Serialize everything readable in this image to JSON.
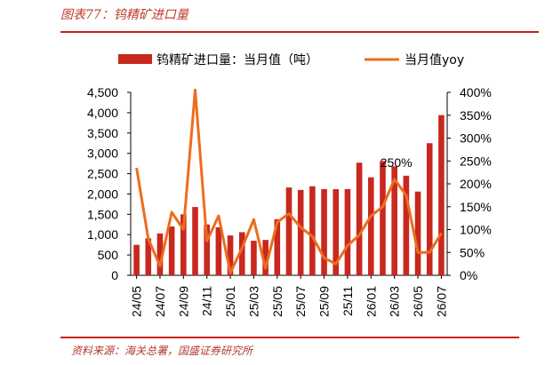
{
  "page": {
    "title": "图表77：钨精矿进口量",
    "source": "资料来源：海关总署，国盛证券研究所"
  },
  "colors": {
    "bar": "#c8281e",
    "line": "#ee6c1f",
    "accent": "#c8221d"
  },
  "chart_data": {
    "type": "bar",
    "categories": [
      "24/05",
      "24/06",
      "24/07",
      "24/08",
      "24/09",
      "24/10",
      "24/11",
      "24/12",
      "25/01",
      "25/02",
      "25/03",
      "25/04",
      "25/05",
      "25/06",
      "25/07",
      "25/08",
      "25/09",
      "25/10",
      "25/11",
      "25/12",
      "26/01",
      "26/02",
      "26/03",
      "26/04",
      "26/05",
      "26/06",
      "26/07"
    ],
    "series": [
      {
        "name": "钨精矿进口量：当月值（吨）",
        "kind": "bar",
        "axis": "left",
        "values": [
          750,
          910,
          1030,
          1200,
          1500,
          1680,
          1250,
          1180,
          980,
          1060,
          850,
          870,
          1380,
          2160,
          2100,
          2190,
          2120,
          2120,
          2120,
          2770,
          2410,
          2810,
          2680,
          2450,
          2060,
          3250,
          3940
        ]
      },
      {
        "name": "当月值yoy",
        "kind": "line",
        "axis": "right",
        "values": [
          2.35,
          0.8,
          0.2,
          1.38,
          1.0,
          4.05,
          0.75,
          1.3,
          0.05,
          0.6,
          1.22,
          0.15,
          1.16,
          1.35,
          1.05,
          0.85,
          0.38,
          0.25,
          0.65,
          0.88,
          1.3,
          1.5,
          2.1,
          1.75,
          0.5,
          0.5,
          0.92
        ]
      }
    ],
    "y_left": {
      "min": 0,
      "max": 4500,
      "ticks": [
        "0",
        "500",
        "1,000",
        "1,500",
        "2,000",
        "2,500",
        "3,000",
        "3,500",
        "4,000",
        "4,500"
      ]
    },
    "y_right": {
      "min": 0,
      "max": 4.0,
      "ticks": [
        "0%",
        "50%",
        "100%",
        "150%",
        "200%",
        "250%",
        "300%",
        "350%",
        "400%"
      ]
    },
    "x_tick_labels": [
      "24/05",
      "24/07",
      "24/09",
      "24/11",
      "25/01",
      "25/03",
      "25/05",
      "25/07",
      "25/09",
      "25/11",
      "26/01",
      "26/03",
      "26/05",
      "26/07"
    ],
    "annotations": [
      {
        "text": "250%"
      }
    ],
    "legend_position": "top",
    "grid": false
  }
}
